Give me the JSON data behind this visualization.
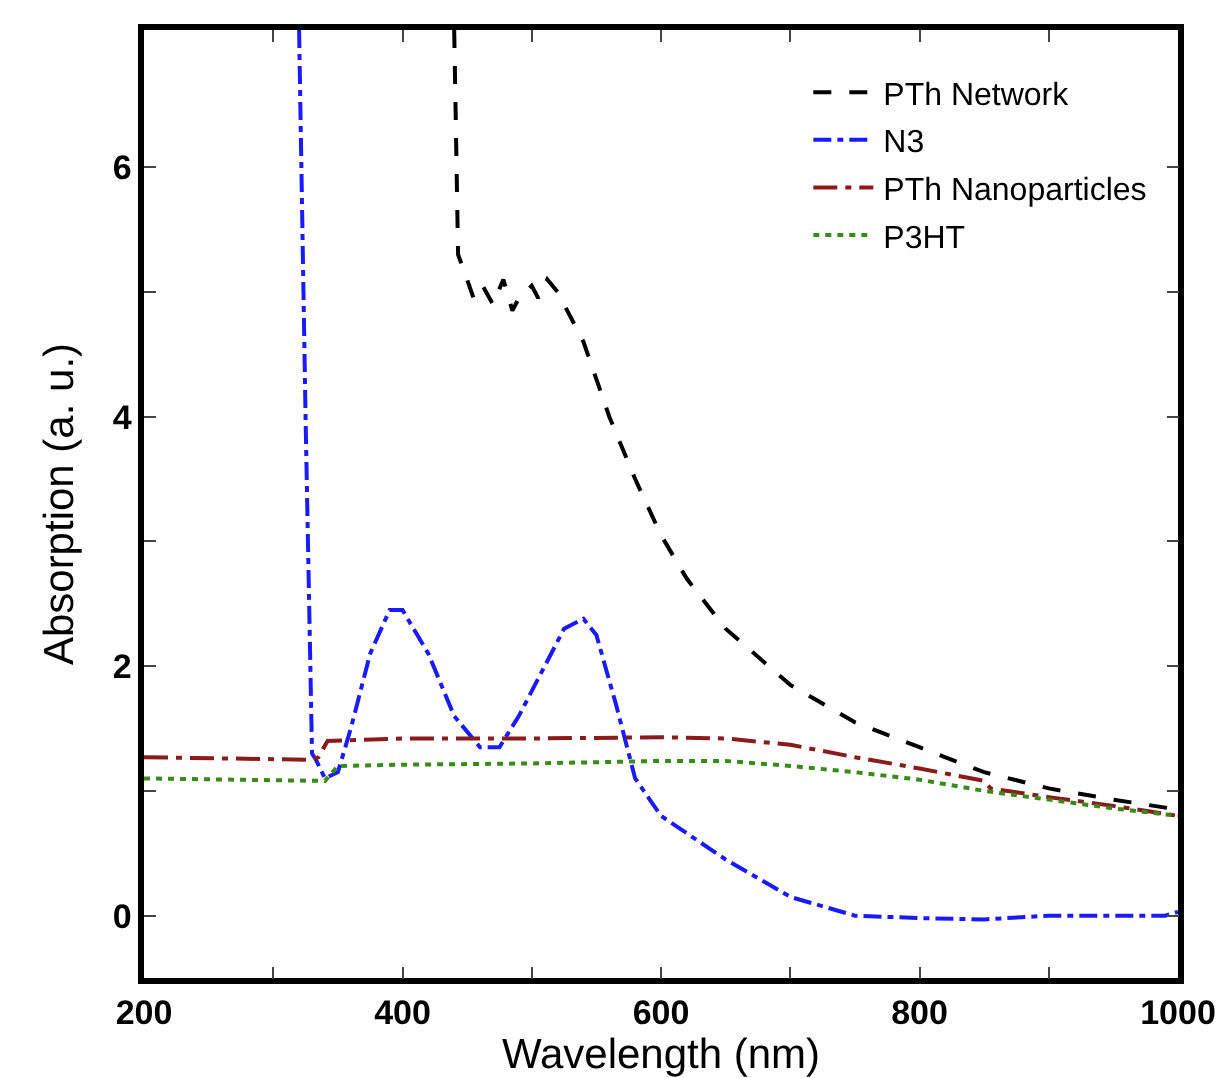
{
  "chart_data": {
    "type": "line",
    "xlabel": "Wavelength (nm)",
    "ylabel": "Absorption (a. u.)",
    "xlim": [
      200,
      1000
    ],
    "ylim": [
      -0.5,
      7.1
    ],
    "xticks": [
      200,
      {
        "value": 300,
        "label": null
      },
      400,
      {
        "value": 500,
        "label": null
      },
      600,
      {
        "value": 700,
        "label": null
      },
      800,
      {
        "value": 900,
        "label": null
      },
      1000
    ],
    "yticks": [
      0,
      {
        "value": 1,
        "label": null
      },
      2,
      {
        "value": 3,
        "label": null
      },
      4,
      {
        "value": 5,
        "label": null
      },
      6
    ],
    "legend": "top right",
    "marker": "none",
    "series": [
      {
        "name": "PTh Network",
        "color": "#000000",
        "line_style": "dashed",
        "x": [
          440,
          443,
          450,
          455,
          462,
          470,
          478,
          485,
          490,
          500,
          505,
          512,
          520,
          530,
          540,
          560,
          580,
          600,
          620,
          650,
          700,
          750,
          800,
          850,
          900,
          950,
          1000
        ],
        "values": [
          7.1,
          5.3,
          5.1,
          4.95,
          5.05,
          4.9,
          5.1,
          4.85,
          4.95,
          5.05,
          4.95,
          5.1,
          5.0,
          4.8,
          4.6,
          4.0,
          3.5,
          3.05,
          2.7,
          2.3,
          1.85,
          1.55,
          1.35,
          1.15,
          1.02,
          0.93,
          0.85
        ]
      },
      {
        "name": "N3",
        "color": "#1a1aff",
        "line_style": "dashdot",
        "x": [
          320,
          325,
          330,
          333,
          340,
          350,
          360,
          375,
          390,
          400,
          420,
          440,
          460,
          475,
          490,
          510,
          525,
          540,
          550,
          565,
          580,
          600,
          650,
          700,
          750,
          800,
          850,
          900,
          950,
          990,
          1000
        ],
        "values": [
          7.1,
          4,
          1.3,
          1.25,
          1.1,
          1.15,
          1.5,
          2.1,
          2.45,
          2.45,
          2.1,
          1.6,
          1.35,
          1.35,
          1.6,
          2.0,
          2.3,
          2.38,
          2.25,
          1.7,
          1.1,
          0.8,
          0.45,
          0.15,
          0.0,
          -0.02,
          -0.03,
          0.0,
          0.0,
          0.0,
          0.03
        ]
      },
      {
        "name": "PTh Nanoparticles",
        "color": "#8b1a1a",
        "line_style": "longdashdot",
        "x": [
          200,
          330,
          335,
          342,
          400,
          500,
          600,
          650,
          700,
          750,
          800,
          850,
          855,
          900,
          950,
          1000
        ],
        "values": [
          1.27,
          1.25,
          1.27,
          1.4,
          1.42,
          1.42,
          1.43,
          1.42,
          1.37,
          1.27,
          1.18,
          1.08,
          1.02,
          0.95,
          0.88,
          0.8
        ]
      },
      {
        "name": "P3HT",
        "color": "#3a8a1a",
        "line_style": "dotted",
        "x": [
          200,
          340,
          350,
          400,
          500,
          600,
          650,
          700,
          750,
          800,
          850,
          900,
          950,
          1000
        ],
        "values": [
          1.1,
          1.08,
          1.2,
          1.21,
          1.22,
          1.24,
          1.24,
          1.2,
          1.15,
          1.09,
          1.0,
          0.93,
          0.86,
          0.8
        ]
      }
    ]
  }
}
